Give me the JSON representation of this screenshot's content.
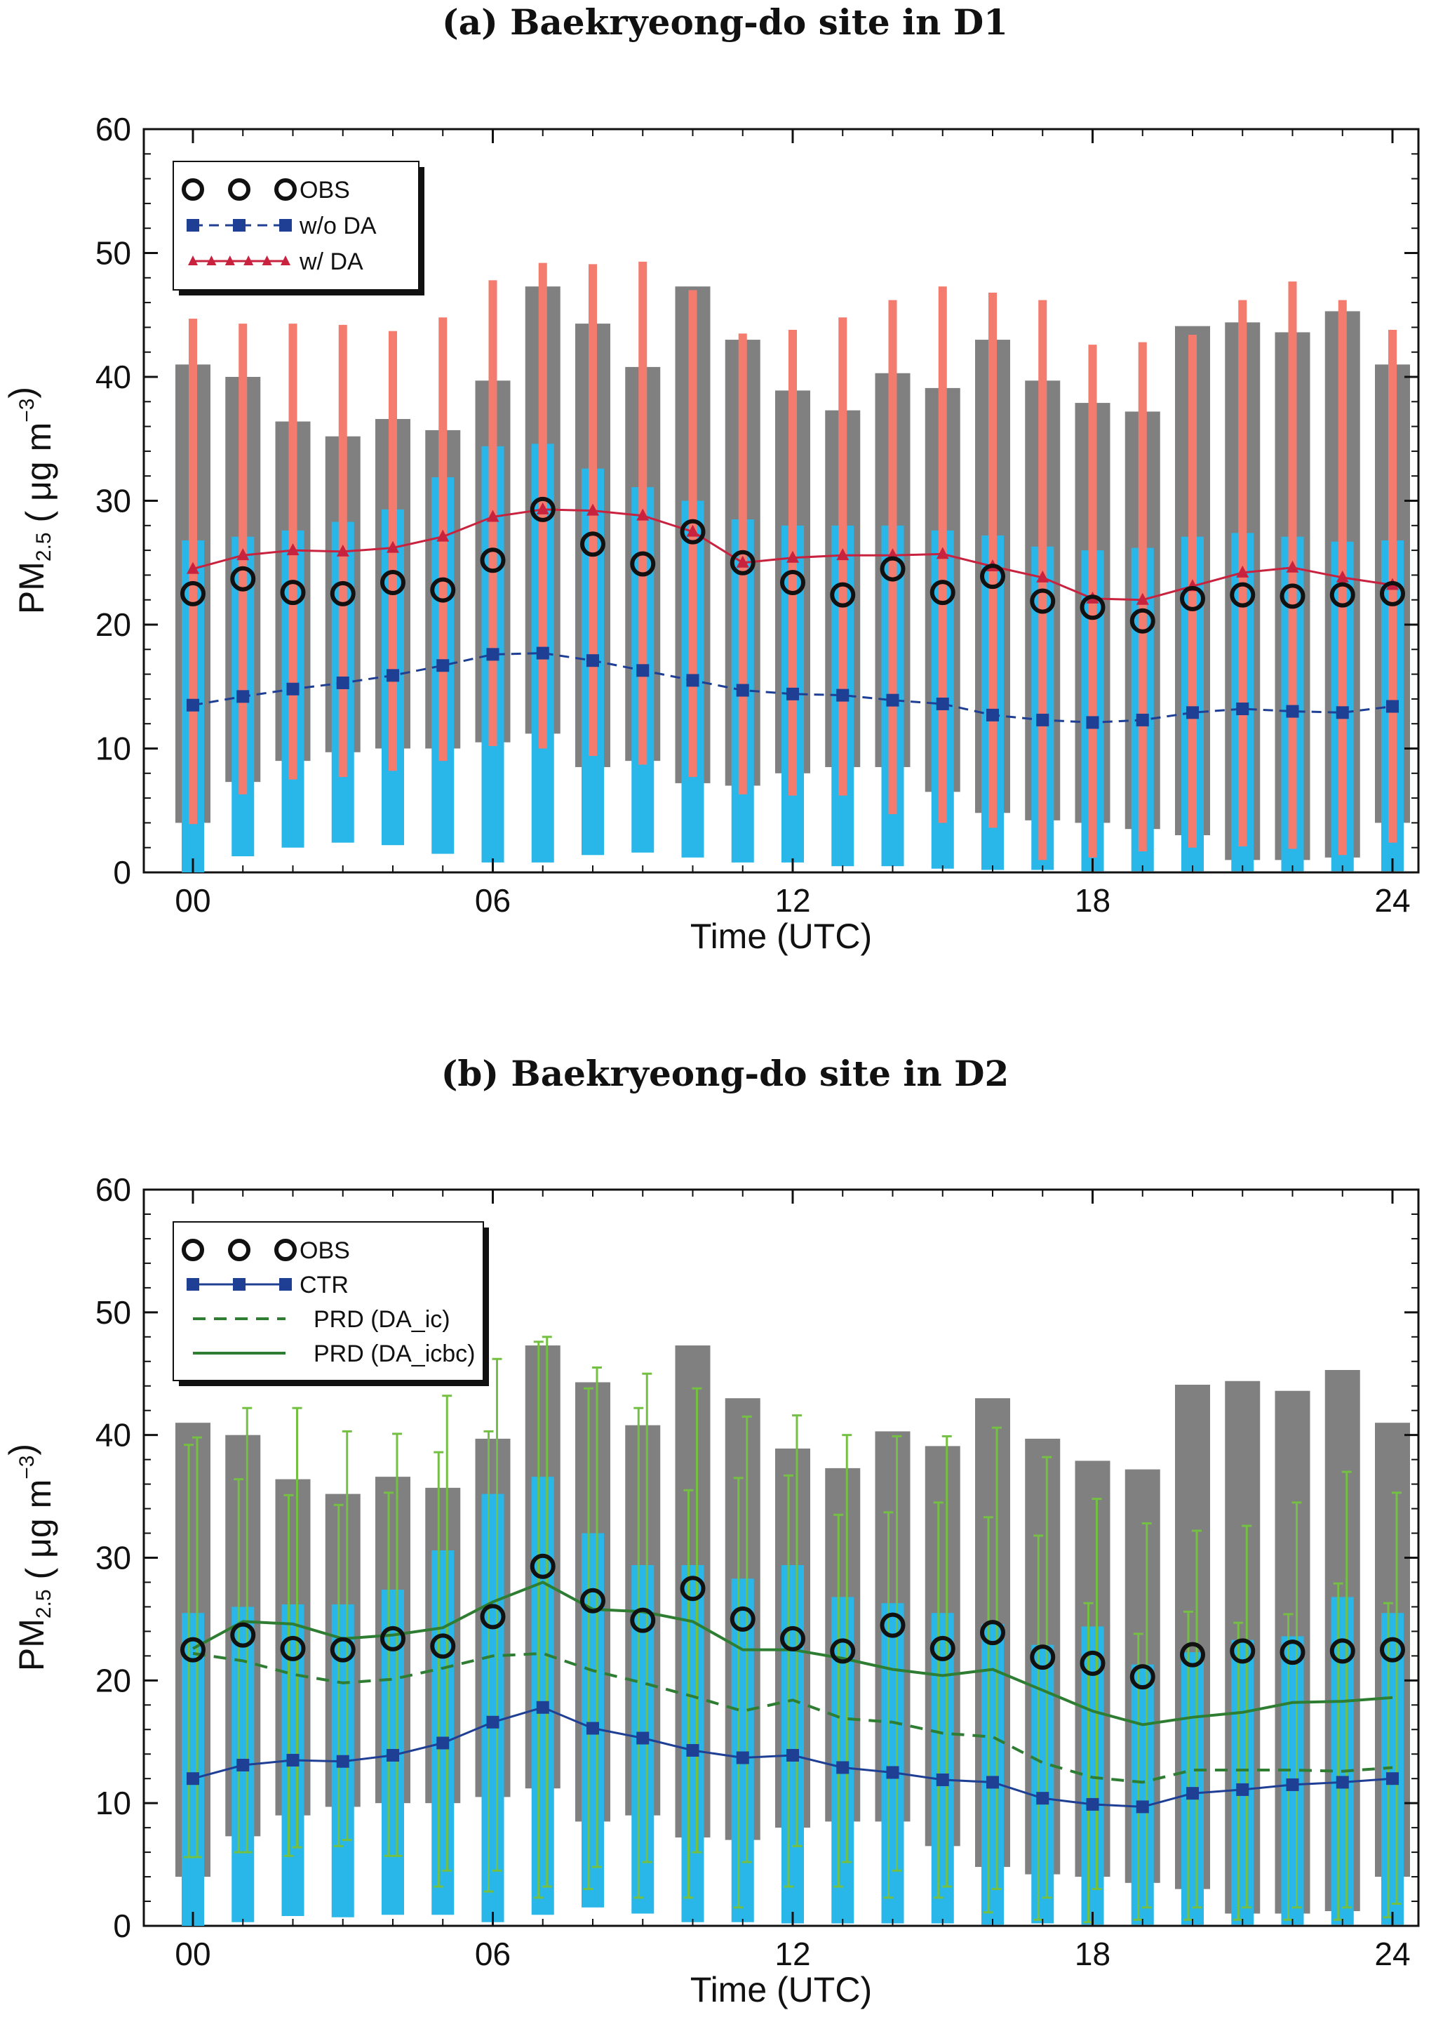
{
  "chart_data": [
    {
      "type": "bar+line",
      "title": "(a) Baekryeong-do site in D1",
      "xlabel": "Time (UTC)",
      "ylabel_main": "PM",
      "ylabel_sub": "2.5",
      "ylabel_unit": " ( μg m",
      "ylabel_exp": "−3",
      "ylabel_close": ")",
      "ylim": [
        0,
        60
      ],
      "yticks": [
        "0",
        "10",
        "20",
        "30",
        "40",
        "50",
        "60"
      ],
      "xticks": [
        "00",
        "06",
        "12",
        "18",
        "24"
      ],
      "x": [
        0,
        1,
        2,
        3,
        4,
        5,
        6,
        7,
        8,
        9,
        10,
        11,
        12,
        13,
        14,
        15,
        16,
        17,
        18,
        19,
        20,
        21,
        22,
        23,
        24
      ],
      "legend": [
        {
          "label": "OBS",
          "style": "circles"
        },
        {
          "label": "w/o DA",
          "style": "dashed-square"
        },
        {
          "label": "w/   DA",
          "style": "solid-triangle"
        }
      ],
      "colors": {
        "obs_range": "#808080",
        "wo_range": "#29b6e8",
        "w_range": "#f47c6f",
        "wo_line": "#1f3f94",
        "w_line": "#c8223f",
        "obs": "#111111"
      },
      "obs_range": {
        "min": [
          4,
          7.3,
          9,
          9.7,
          10,
          10,
          10.5,
          11.2,
          8.5,
          9,
          7.2,
          7,
          8,
          8.5,
          8.5,
          6.5,
          4.8,
          4.2,
          4,
          3.5,
          3,
          1,
          1,
          1.2,
          4
        ],
        "max": [
          41,
          40,
          36.4,
          35.2,
          36.6,
          35.7,
          39.7,
          47.3,
          44.3,
          40.8,
          47.3,
          43,
          38.9,
          37.3,
          40.3,
          39.1,
          43,
          39.7,
          37.9,
          37.2,
          44.1,
          44.4,
          43.6,
          45.3,
          41
        ]
      },
      "wo_range": {
        "min": [
          0,
          1.3,
          2,
          2.4,
          2.2,
          1.5,
          0.8,
          0.8,
          1.4,
          1.6,
          1.2,
          0.8,
          0.8,
          0.5,
          0.5,
          0.3,
          0.2,
          0.2,
          0.1,
          0.1,
          0.1,
          0.1,
          0.1,
          0.1,
          0.1
        ],
        "max": [
          26.8,
          27.1,
          27.6,
          28.3,
          29.3,
          31.9,
          34.4,
          34.6,
          32.6,
          31.1,
          30,
          28.5,
          28,
          28,
          28,
          27.6,
          27.2,
          26.3,
          26,
          26.2,
          27.1,
          27.4,
          27.1,
          26.7,
          26.8
        ]
      },
      "w_range": {
        "min": [
          3.9,
          6.3,
          7.5,
          7.7,
          8.2,
          9,
          10.2,
          10,
          9.4,
          8.7,
          7.7,
          6.3,
          6.2,
          6.2,
          4.7,
          4,
          3.6,
          1,
          1.2,
          1.7,
          2,
          2.1,
          1.9,
          1.4,
          2.4
        ],
        "max": [
          44.7,
          44.3,
          44.3,
          44.2,
          43.7,
          44.8,
          47.8,
          49.2,
          49.1,
          49.3,
          47,
          43.5,
          43.8,
          44.8,
          46.2,
          47.3,
          46.8,
          46.2,
          42.6,
          42.8,
          43.4,
          46.2,
          47.7,
          46.2,
          43.8
        ]
      },
      "obs": [
        22.5,
        23.7,
        22.6,
        22.5,
        23.4,
        22.8,
        25.2,
        29.3,
        26.5,
        24.9,
        27.5,
        25,
        23.4,
        22.4,
        24.5,
        22.6,
        23.9,
        21.9,
        21.4,
        20.3,
        22.1,
        22.4,
        22.3,
        22.4,
        22.5
      ],
      "wo_da": [
        13.5,
        14.2,
        14.8,
        15.3,
        15.9,
        16.7,
        17.6,
        17.7,
        17.1,
        16.3,
        15.5,
        14.7,
        14.4,
        14.3,
        13.9,
        13.6,
        12.7,
        12.3,
        12.1,
        12.3,
        12.9,
        13.2,
        13,
        12.9,
        13.4
      ],
      "w_da": [
        24.5,
        25.6,
        26,
        25.9,
        26.2,
        27.1,
        28.7,
        29.3,
        29.2,
        28.8,
        27.5,
        25,
        25.4,
        25.6,
        25.6,
        25.7,
        24.7,
        23.8,
        22.1,
        22,
        23.1,
        24.2,
        24.6,
        23.8,
        23.2
      ]
    },
    {
      "type": "bar+line",
      "title": "(b) Baekryeong-do site in D2",
      "xlabel": "Time (UTC)",
      "ylabel_main": "PM",
      "ylabel_sub": "2.5",
      "ylabel_unit": " ( μg m",
      "ylabel_exp": "−3",
      "ylabel_close": ")",
      "ylim": [
        0,
        60
      ],
      "yticks": [
        "0",
        "10",
        "20",
        "30",
        "40",
        "50",
        "60"
      ],
      "xticks": [
        "00",
        "06",
        "12",
        "18",
        "24"
      ],
      "x": [
        0,
        1,
        2,
        3,
        4,
        5,
        6,
        7,
        8,
        9,
        10,
        11,
        12,
        13,
        14,
        15,
        16,
        17,
        18,
        19,
        20,
        21,
        22,
        23,
        24
      ],
      "legend": [
        {
          "label": "OBS",
          "style": "circles"
        },
        {
          "label": "CTR",
          "style": "solid-square"
        },
        {
          "label": "PRD (DA_ic)",
          "style": "dashed"
        },
        {
          "label": "PRD (DA_icbc)",
          "style": "solid"
        }
      ],
      "colors": {
        "obs_range": "#808080",
        "ctr_range": "#29b6e8",
        "err": "#74c043",
        "ctr_line": "#1f3f94",
        "prd_ic": "#2e7d32",
        "prd_icbc": "#2e7d32",
        "obs": "#111111"
      },
      "obs_range": {
        "min": [
          4,
          7.3,
          9,
          9.7,
          10,
          10,
          10.5,
          11.2,
          8.5,
          9,
          7.2,
          7,
          8,
          8.5,
          8.5,
          6.5,
          4.8,
          4.2,
          4,
          3.5,
          3,
          1,
          1,
          1.2,
          4
        ],
        "max": [
          41,
          40,
          36.4,
          35.2,
          36.6,
          35.7,
          39.7,
          47.3,
          44.3,
          40.8,
          47.3,
          43,
          38.9,
          37.3,
          40.3,
          39.1,
          43,
          39.7,
          37.9,
          37.2,
          44.1,
          44.4,
          43.6,
          45.3,
          41
        ]
      },
      "ctr_range": {
        "min": [
          0,
          0.3,
          0.8,
          0.7,
          0.9,
          0.9,
          0.3,
          0.9,
          1.5,
          1,
          0.3,
          0.3,
          0.2,
          0.2,
          0.2,
          0.2,
          0.1,
          0.2,
          0.1,
          0.1,
          0.1,
          0.1,
          0.1,
          0.1,
          0.1
        ],
        "max": [
          25.5,
          26,
          26.2,
          26.2,
          27.4,
          30.6,
          35.2,
          36.6,
          32,
          29.4,
          29.4,
          28.3,
          29.4,
          26.8,
          26.3,
          25.5,
          24.6,
          22.9,
          24.4,
          21.3,
          22.3,
          23.3,
          23.6,
          26.8,
          25.5
        ]
      },
      "err_ic": {
        "lo": [
          5.6,
          6,
          5.7,
          6.5,
          5.7,
          3.2,
          2.8,
          2.3,
          3,
          2.3,
          2.3,
          1.5,
          3.2,
          3.2,
          2.3,
          2.3,
          1.1,
          0.5,
          0.3,
          0.5,
          0.5,
          0.5,
          0.5,
          0.5,
          0.7
        ],
        "hi": [
          39.2,
          36.4,
          35.1,
          34.3,
          35.3,
          38.6,
          40.3,
          47.6,
          43.8,
          42.2,
          35.5,
          36.5,
          36.7,
          33.5,
          33.7,
          34.5,
          33.3,
          31.8,
          26.3,
          23.8,
          25.6,
          24.7,
          25.4,
          27.9,
          26.3
        ]
      },
      "err_icbc": {
        "lo": [
          5.6,
          6,
          6.4,
          7,
          5.7,
          4.5,
          4.5,
          3.2,
          4.8,
          5.2,
          6,
          5.2,
          6.5,
          5.2,
          4.5,
          3.2,
          3,
          2.3,
          3,
          1.5,
          1.5,
          1.5,
          1.5,
          1.5,
          1.8
        ],
        "hi": [
          39.8,
          42.2,
          42.2,
          40.3,
          40.1,
          43.2,
          46.2,
          48,
          45.5,
          45,
          43.8,
          41.5,
          41.6,
          40,
          39.9,
          39.9,
          40.6,
          38.2,
          34.8,
          32.8,
          32.2,
          32.6,
          34.5,
          37,
          35.3
        ]
      },
      "obs": [
        22.5,
        23.7,
        22.6,
        22.5,
        23.4,
        22.8,
        25.2,
        29.3,
        26.5,
        24.9,
        27.5,
        25,
        23.4,
        22.4,
        24.5,
        22.6,
        23.9,
        21.9,
        21.4,
        20.3,
        22.1,
        22.4,
        22.3,
        22.4,
        22.5
      ],
      "ctr": [
        12,
        13.1,
        13.5,
        13.4,
        13.9,
        14.9,
        16.6,
        17.8,
        16.1,
        15.3,
        14.3,
        13.7,
        13.9,
        12.9,
        12.5,
        11.9,
        11.7,
        10.4,
        9.9,
        9.7,
        10.8,
        11.1,
        11.5,
        11.7,
        12
      ],
      "prd_ic": [
        22.2,
        21.6,
        20.5,
        19.8,
        20.1,
        21,
        22,
        22.2,
        20.8,
        19.8,
        18.7,
        17.5,
        18.4,
        16.9,
        16.6,
        15.7,
        15.4,
        13.3,
        12.1,
        11.7,
        12.7,
        12.7,
        12.7,
        12.6,
        12.9
      ],
      "prd_icbc": [
        22.6,
        24.8,
        24.6,
        23.4,
        23.7,
        24.3,
        26.4,
        28,
        25.8,
        25.6,
        24.8,
        22.5,
        22.5,
        21.8,
        20.9,
        20.4,
        20.9,
        19.2,
        17.5,
        16.4,
        17,
        17.4,
        18.2,
        18.3,
        18.6
      ]
    }
  ]
}
